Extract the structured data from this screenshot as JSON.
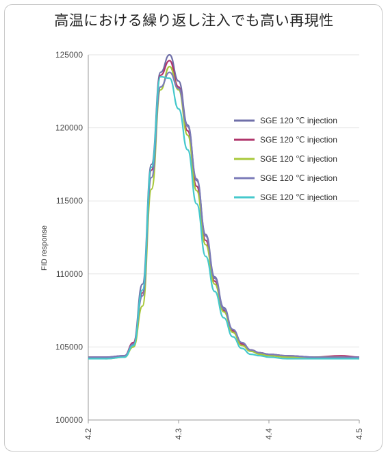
{
  "chart_data": {
    "type": "line",
    "title": "高温における繰り返し注入でも高い再現性",
    "xlabel": "",
    "ylabel": "FID response",
    "xlim": [
      4.2,
      4.5
    ],
    "ylim": [
      100000,
      125000
    ],
    "x_ticks": [
      "4.2",
      "4.3",
      "4.4",
      "4.5"
    ],
    "y_ticks": [
      "100000",
      "105000",
      "110000",
      "115000",
      "120000",
      "125000"
    ],
    "grid": "horizontal",
    "legend_position": "right",
    "x": [
      4.2,
      4.22,
      4.24,
      4.25,
      4.26,
      4.27,
      4.28,
      4.29,
      4.3,
      4.31,
      4.32,
      4.33,
      4.34,
      4.35,
      4.36,
      4.37,
      4.38,
      4.39,
      4.4,
      4.42,
      4.45,
      4.48,
      4.5
    ],
    "series": [
      {
        "name": "SGE 120 ℃ injection",
        "color": "#6f6fa8",
        "values": [
          104300,
          104300,
          104400,
          105300,
          109300,
          117500,
          123800,
          125000,
          123200,
          120200,
          116400,
          112700,
          109800,
          107700,
          106200,
          105300,
          104800,
          104600,
          104500,
          104400,
          104300,
          104300,
          104300
        ]
      },
      {
        "name": "SGE 120 ℃ injection",
        "color": "#b0356b",
        "values": [
          104300,
          104300,
          104400,
          105300,
          108700,
          117100,
          123600,
          124600,
          122800,
          119800,
          116000,
          112300,
          109500,
          107500,
          106100,
          105200,
          104800,
          104600,
          104500,
          104400,
          104300,
          104400,
          104300
        ]
      },
      {
        "name": "SGE 120 ℃ injection",
        "color": "#a8c83a",
        "values": [
          104300,
          104200,
          104300,
          105000,
          107800,
          115800,
          122600,
          124200,
          122600,
          119500,
          115700,
          112000,
          109300,
          107400,
          106000,
          105100,
          104700,
          104500,
          104400,
          104300,
          104300,
          104300,
          104200
        ]
      },
      {
        "name": "SGE 120 ℃ injection",
        "color": "#7b7bb8",
        "values": [
          104300,
          104300,
          104400,
          105200,
          108500,
          116600,
          122800,
          123800,
          122700,
          120100,
          116500,
          112600,
          109700,
          107600,
          106200,
          105300,
          104800,
          104600,
          104500,
          104400,
          104300,
          104300,
          104300
        ]
      },
      {
        "name": "SGE 120 ℃ injection",
        "color": "#45c8cc",
        "values": [
          104200,
          104200,
          104300,
          105100,
          108900,
          117300,
          123500,
          123400,
          121300,
          118500,
          114800,
          111200,
          108800,
          107000,
          105700,
          104900,
          104500,
          104400,
          104300,
          104200,
          104200,
          104200,
          104200
        ]
      }
    ]
  }
}
